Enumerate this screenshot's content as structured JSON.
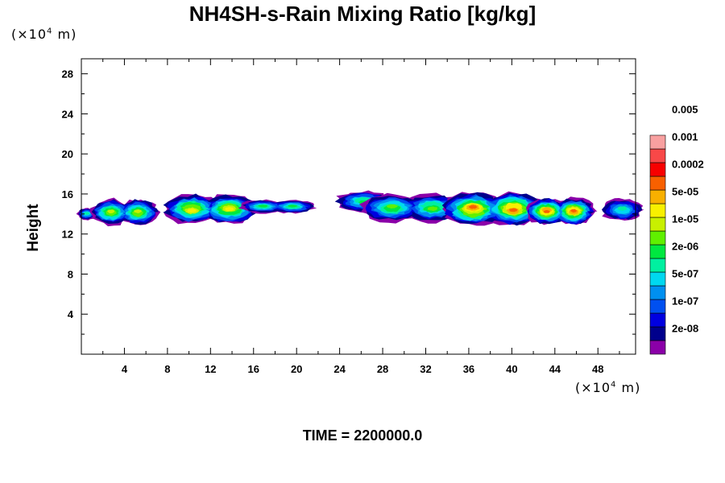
{
  "chart_data": {
    "type": "heatmap",
    "title": "NH4SH-s-Rain Mixing Ratio [kg/kg]",
    "xlabel": "",
    "ylabel": "Height",
    "x_unit": "(×10⁴ m)",
    "y_unit": "(×10⁴ m)",
    "xlim": [
      0,
      51.5
    ],
    "ylim": [
      0,
      29.5
    ],
    "x_ticks": [
      "4",
      "8",
      "12",
      "16",
      "20",
      "24",
      "28",
      "32",
      "36",
      "40",
      "44",
      "48"
    ],
    "y_ticks": [
      "4",
      "8",
      "12",
      "16",
      "20",
      "24",
      "28"
    ],
    "x_tick_values": [
      4,
      8,
      12,
      16,
      20,
      24,
      28,
      32,
      36,
      40,
      44,
      48
    ],
    "y_tick_values": [
      4,
      8,
      12,
      16,
      20,
      24,
      28
    ],
    "colorbar": {
      "labels": [
        "0.005",
        "0.001",
        "0.0002",
        "5e-05",
        "1e-05",
        "2e-06",
        "5e-07",
        "1e-07",
        "2e-08"
      ],
      "colors": [
        "#8b00a8",
        "#00008c",
        "#0000e0",
        "#0050f0",
        "#0090f0",
        "#00d8f0",
        "#00f0a0",
        "#00e840",
        "#60f000",
        "#c8f000",
        "#f8f000",
        "#f8b000",
        "#f86000",
        "#f80000",
        "#f84848",
        "#f8a0a0"
      ]
    },
    "clouds": [
      {
        "x": [
          0,
          1
        ],
        "y": [
          13.4,
          14.6
        ],
        "level": 6
      },
      {
        "x": [
          1.5,
          6.5
        ],
        "y": [
          12.9,
          15.5
        ],
        "level": 9
      },
      {
        "x": [
          8.5,
          15.5
        ],
        "y": [
          13.0,
          16.0
        ],
        "level": 10
      },
      {
        "x": [
          15.5,
          21
        ],
        "y": [
          14.1,
          15.4
        ],
        "level": 7
      },
      {
        "x": [
          24.5,
          28
        ],
        "y": [
          14.2,
          16.3
        ],
        "level": 7
      },
      {
        "x": [
          27,
          34.5
        ],
        "y": [
          13.2,
          16.0
        ],
        "level": 8
      },
      {
        "x": [
          34.5,
          42
        ],
        "y": [
          12.8,
          16.2
        ],
        "level": 12
      },
      {
        "x": [
          42,
          47
        ],
        "y": [
          12.9,
          15.6
        ],
        "level": 12
      },
      {
        "x": [
          49,
          51.5
        ],
        "y": [
          13.3,
          15.6
        ],
        "level": 6
      }
    ]
  },
  "time_label": "TIME = 2200000.0"
}
